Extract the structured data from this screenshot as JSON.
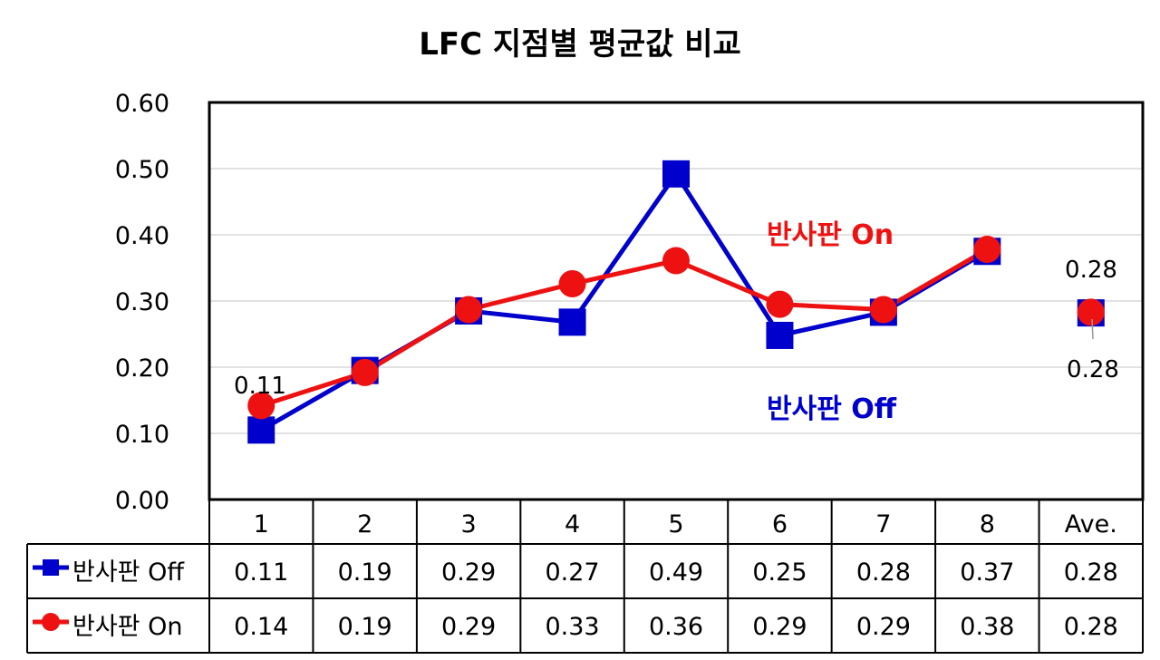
{
  "chart_data": {
    "type": "line",
    "title": "LFC 지점별 평균값 비교",
    "categories": [
      "1",
      "2",
      "3",
      "4",
      "5",
      "6",
      "7",
      "8",
      "Ave."
    ],
    "ylim": [
      0,
      0.6
    ],
    "yticks": [
      "0.00",
      "0.10",
      "0.20",
      "0.30",
      "0.40",
      "0.50",
      "0.60"
    ],
    "grid": true,
    "legend": "data-table",
    "series": [
      {
        "name": "반사판 Off",
        "color": "#0000CC",
        "marker": "square",
        "values": [
          0.105,
          0.195,
          0.285,
          0.268,
          0.492,
          0.248,
          0.283,
          0.375,
          0.282
        ],
        "table_values": [
          "0.11",
          "0.19",
          "0.29",
          "0.27",
          "0.49",
          "0.25",
          "0.28",
          "0.37",
          "0.28"
        ]
      },
      {
        "name": "반사판 On",
        "color": "#EE1111",
        "marker": "circle",
        "values": [
          0.142,
          0.192,
          0.287,
          0.326,
          0.361,
          0.295,
          0.287,
          0.378,
          0.283
        ],
        "table_values": [
          "0.14",
          "0.19",
          "0.29",
          "0.33",
          "0.36",
          "0.29",
          "0.29",
          "0.38",
          "0.28"
        ]
      }
    ],
    "annotations": {
      "on_label": "반사판 On",
      "off_label": "반사판 Off",
      "first_point_label": "0.11",
      "ave_on_label": "0.28",
      "ave_off_label": "0.28"
    }
  }
}
